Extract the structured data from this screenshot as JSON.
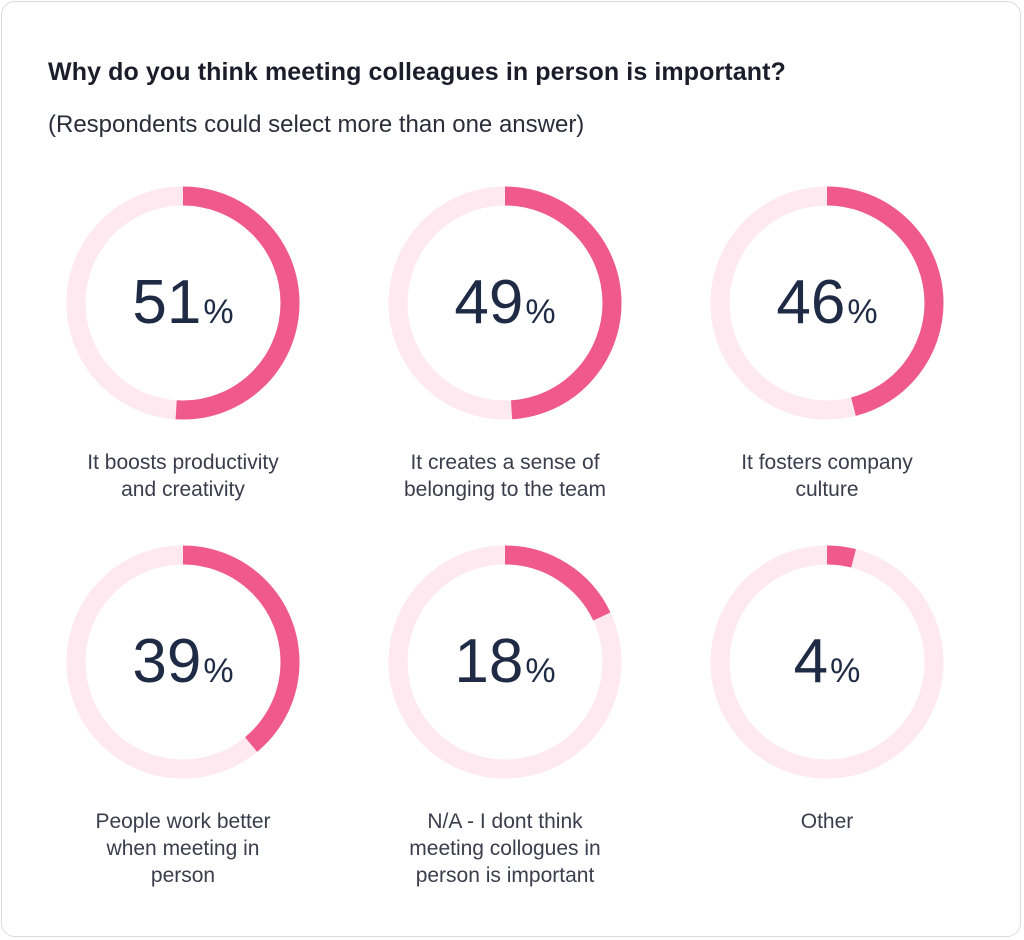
{
  "header": {
    "title": "Why do you think meeting colleagues in person is important?",
    "subtitle": "(Respondents could select more than one answer)"
  },
  "colors": {
    "track": "#fde9ef",
    "arc": "#f0598b",
    "text": "#1f2a44"
  },
  "chart_data": {
    "type": "pie",
    "subtype": "donut-progress",
    "items": [
      {
        "value": 51,
        "unit": "%",
        "label": "It boosts productivity\nand creativity"
      },
      {
        "value": 49,
        "unit": "%",
        "label": "It creates a sense of\nbelonging to the team"
      },
      {
        "value": 46,
        "unit": "%",
        "label": "It fosters company\nculture"
      },
      {
        "value": 39,
        "unit": "%",
        "label": "People work better\nwhen meeting in\nperson"
      },
      {
        "value": 18,
        "unit": "%",
        "label": "N/A - I dont think\nmeeting collogues in\nperson is important"
      },
      {
        "value": 4,
        "unit": "%",
        "label": "Other"
      }
    ]
  }
}
